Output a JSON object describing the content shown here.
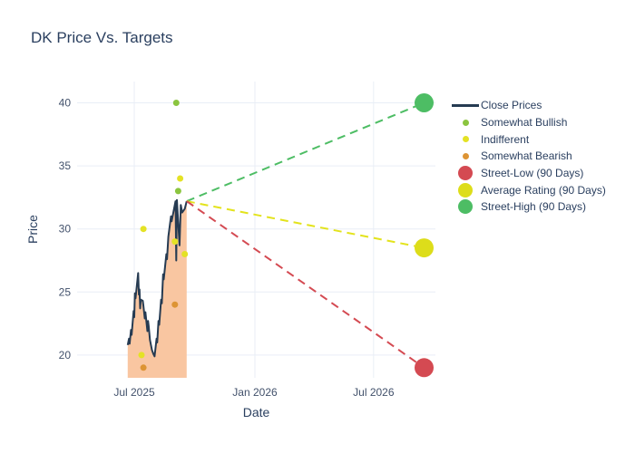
{
  "title": "DK Price Vs. Targets",
  "axes": {
    "x_title": "Date",
    "y_title": "Price",
    "x_ticks": [
      "Jul 2025",
      "Jan 2026",
      "Jul 2026"
    ],
    "x_tick_dates": [
      "2025-07-01",
      "2026-01-01",
      "2026-07-01"
    ],
    "y_ticks": [
      20,
      25,
      30,
      35,
      40
    ]
  },
  "legend": {
    "items": [
      {
        "label": "Close Prices",
        "color": "#263b52",
        "swatch": "line"
      },
      {
        "label": "Somewhat Bullish",
        "color": "#8bc53f",
        "swatch": "dot"
      },
      {
        "label": "Indifferent",
        "color": "#e4e225",
        "swatch": "dot"
      },
      {
        "label": "Somewhat Bearish",
        "color": "#dd9434",
        "swatch": "dot"
      },
      {
        "label": "Street-Low (90 Days)",
        "color": "#d44a52",
        "swatch": "circle"
      },
      {
        "label": "Average Rating (90 Days)",
        "color": "#dddd1a",
        "swatch": "circle"
      },
      {
        "label": "Street-High (90 Days)",
        "color": "#4dbd64",
        "swatch": "circle"
      }
    ]
  },
  "chart_data": {
    "type": "line",
    "title": "DK Price Vs. Targets",
    "xlabel": "Date",
    "ylabel": "Price",
    "y_ticks": [
      20,
      25,
      30,
      35,
      40
    ],
    "x_ticks": [
      "Jul 2025",
      "Jan 2026",
      "Jul 2026"
    ],
    "y_range": [
      18.2,
      41.7
    ],
    "x_range": [
      "2025-04-10",
      "2026-10-05"
    ],
    "grid": true,
    "legend_position": "right",
    "grid_color": "#e9eef6",
    "tick_color": "#42516b",
    "series": [
      {
        "name": "Close Prices",
        "type": "line",
        "color": "#263b52",
        "fill_color": "#f9c6a1",
        "points": [
          [
            "2025-06-21",
            20.8
          ],
          [
            "2025-06-23",
            21.3
          ],
          [
            "2025-06-24",
            20.9
          ],
          [
            "2025-06-26",
            22.0
          ],
          [
            "2025-06-27",
            21.6
          ],
          [
            "2025-06-30",
            23.5
          ],
          [
            "2025-07-01",
            23.0
          ],
          [
            "2025-07-02",
            24.9
          ],
          [
            "2025-07-03",
            24.5
          ],
          [
            "2025-07-07",
            26.5
          ],
          [
            "2025-07-08",
            24.8
          ],
          [
            "2025-07-09",
            25.2
          ],
          [
            "2025-07-10",
            23.7
          ],
          [
            "2025-07-11",
            24.4
          ],
          [
            "2025-07-14",
            24.3
          ],
          [
            "2025-07-15",
            23.9
          ],
          [
            "2025-07-17",
            22.9
          ],
          [
            "2025-07-18",
            23.4
          ],
          [
            "2025-07-21",
            21.9
          ],
          [
            "2025-07-22",
            22.7
          ],
          [
            "2025-07-23",
            22.3
          ],
          [
            "2025-07-25",
            21.2
          ],
          [
            "2025-07-28",
            20.4
          ],
          [
            "2025-07-30",
            20.1
          ],
          [
            "2025-08-01",
            19.9
          ],
          [
            "2025-08-04",
            21.3
          ],
          [
            "2025-08-05",
            21.0
          ],
          [
            "2025-08-07",
            22.7
          ],
          [
            "2025-08-08",
            22.4
          ],
          [
            "2025-08-11",
            24.4
          ],
          [
            "2025-08-12",
            24.1
          ],
          [
            "2025-08-14",
            26.4
          ],
          [
            "2025-08-15",
            26.0
          ],
          [
            "2025-08-19",
            28.0
          ],
          [
            "2025-08-20",
            27.6
          ],
          [
            "2025-08-22",
            29.4
          ],
          [
            "2025-08-26",
            31.0
          ],
          [
            "2025-08-27",
            30.6
          ],
          [
            "2025-09-02",
            32.2
          ],
          [
            "2025-09-03",
            27.5
          ],
          [
            "2025-09-04",
            32.3
          ],
          [
            "2025-09-08",
            28.7
          ],
          [
            "2025-09-10",
            31.9
          ],
          [
            "2025-09-12",
            31.3
          ],
          [
            "2025-09-16",
            31.6
          ],
          [
            "2025-09-19",
            32.2
          ]
        ]
      },
      {
        "name": "Somewhat Bullish",
        "type": "scatter",
        "color": "#8bc53f",
        "points": [
          [
            "2025-09-03",
            40
          ],
          [
            "2025-09-06",
            33
          ]
        ]
      },
      {
        "name": "Indifferent",
        "type": "scatter",
        "color": "#e4e225",
        "points": [
          [
            "2025-07-12",
            20
          ],
          [
            "2025-07-15",
            30
          ],
          [
            "2025-09-01",
            29
          ],
          [
            "2025-09-09",
            34
          ],
          [
            "2025-09-16",
            28
          ]
        ]
      },
      {
        "name": "Somewhat Bearish",
        "type": "scatter",
        "color": "#dd9434",
        "points": [
          [
            "2025-07-15",
            19
          ],
          [
            "2025-09-01",
            24
          ]
        ]
      },
      {
        "name": "Street-Low (90 Days)",
        "type": "target",
        "color": "#d44a52",
        "points": [
          [
            "2026-09-16",
            19
          ]
        ]
      },
      {
        "name": "Average Rating (90 Days)",
        "type": "target",
        "color": "#dddd1a",
        "points": [
          [
            "2026-09-16",
            28.5
          ]
        ]
      },
      {
        "name": "Street-High (90 Days)",
        "type": "target",
        "color": "#4dbd64",
        "points": [
          [
            "2026-09-16",
            40
          ]
        ]
      }
    ],
    "projection_lines": [
      {
        "name": "street-high-projection",
        "from": [
          "2025-09-19",
          32.2
        ],
        "to": [
          "2026-09-16",
          40.0
        ],
        "color": "#4dbd64"
      },
      {
        "name": "average-rating-projection",
        "from": [
          "2025-09-19",
          32.2
        ],
        "to": [
          "2026-09-16",
          28.5
        ],
        "color": "#e3e31c"
      },
      {
        "name": "street-low-projection",
        "from": [
          "2025-09-19",
          32.2
        ],
        "to": [
          "2026-09-16",
          19.0
        ],
        "color": "#d44a52"
      }
    ]
  }
}
